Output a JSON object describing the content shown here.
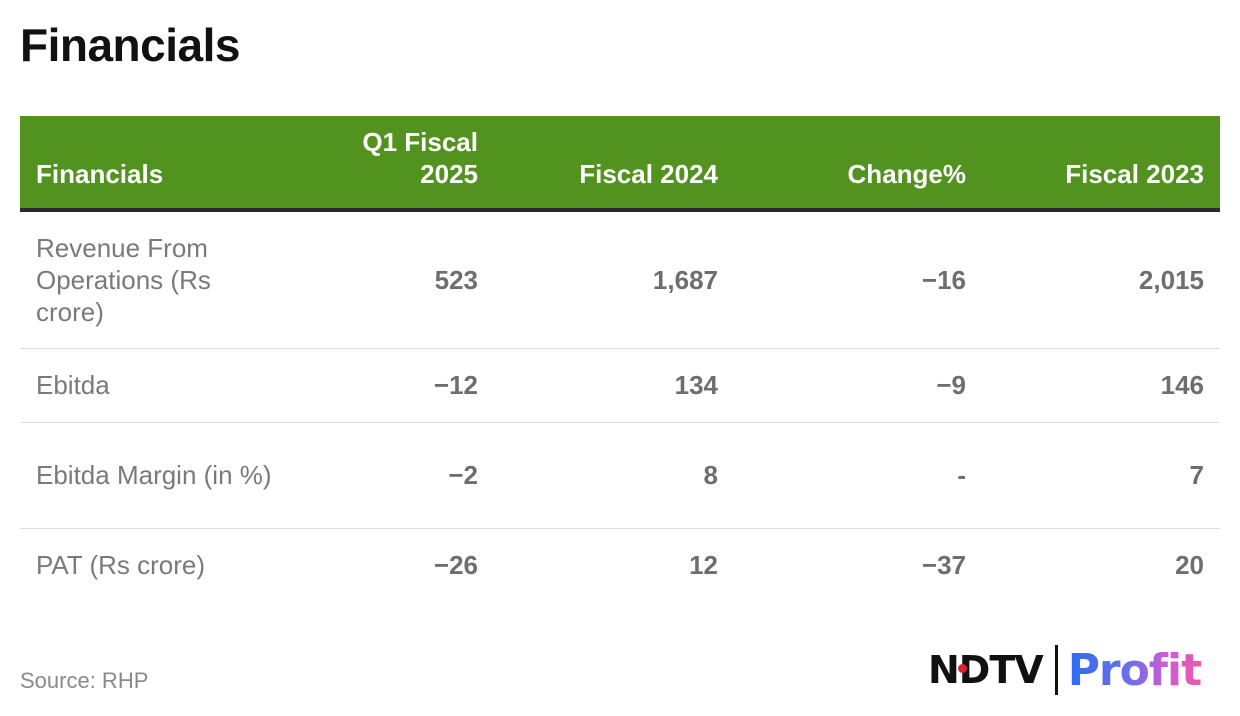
{
  "title": "Financials",
  "chart_data": {
    "type": "table",
    "columns": [
      "Financials",
      "Q1 Fiscal 2025",
      "Fiscal 2024",
      "Change%",
      "Fiscal 2023"
    ],
    "rows": [
      {
        "label": "Revenue From Operations (Rs crore)",
        "values": [
          "523",
          "1,687",
          "−16",
          "2,015"
        ]
      },
      {
        "label": "Ebitda",
        "values": [
          "−12",
          "134",
          "−9",
          "146"
        ]
      },
      {
        "label": "Ebitda Margin (in %)",
        "values": [
          "−2",
          "8",
          "-",
          "7"
        ]
      },
      {
        "label": "PAT (Rs crore)",
        "values": [
          "−26",
          "12",
          "−37",
          "20"
        ]
      }
    ],
    "header_color": "#52931f"
  },
  "source": "Source: RHP",
  "logo": {
    "ndtv": "NDTV",
    "profit": "Profit"
  }
}
